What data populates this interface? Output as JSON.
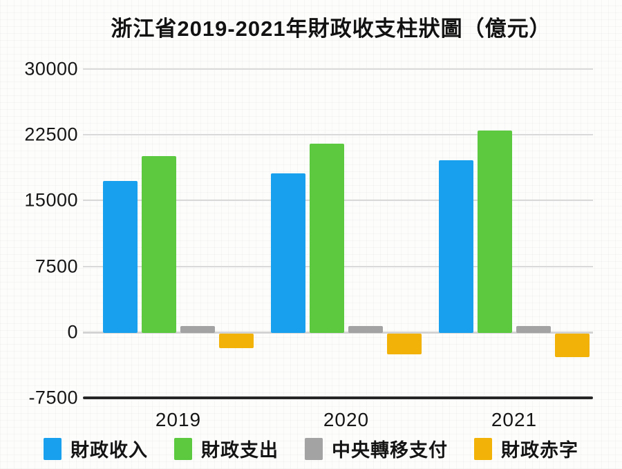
{
  "chart_data": {
    "type": "bar",
    "title": "浙江省2019-2021年財政收支柱狀圖（億元）",
    "unit": "億元",
    "categories": [
      "2019",
      "2020",
      "2021"
    ],
    "series": [
      {
        "name": "財政收入",
        "color": "#18a0ee",
        "values": [
          17200,
          18100,
          19600
        ]
      },
      {
        "name": "財政支出",
        "color": "#5cc93f",
        "values": [
          20100,
          21500,
          23000
        ]
      },
      {
        "name": "中央轉移支付",
        "color": "#a3a3a3",
        "values": [
          700,
          700,
          700
        ]
      },
      {
        "name": "財政赤字",
        "color": "#f2b207",
        "values": [
          -1800,
          -2550,
          -2870
        ]
      }
    ],
    "ylim": [
      -7500,
      30000
    ],
    "yticks": [
      30000,
      22500,
      15000,
      7500,
      0,
      -7500
    ],
    "grid": true,
    "legend_position": "bottom",
    "colors": {
      "gridline": "#d9d9d9",
      "zero_line": "#d3d3d3",
      "bottom_axis": "#262626",
      "text": "#161616",
      "background": "#fdfdfc"
    }
  }
}
